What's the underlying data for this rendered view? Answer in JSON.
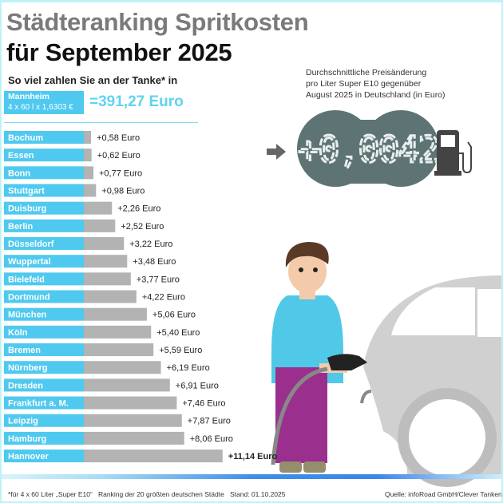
{
  "header": {
    "title_line1": "Städteranking Spritkosten",
    "title_line2": "für September 2025",
    "subtitle": "So viel zahlen Sie an der Tanke* in"
  },
  "highlight": {
    "city": "Mannheim",
    "formula": "4 x 60 l x 1,6303 €",
    "total": "=391,27 Euro"
  },
  "avg_change": {
    "description": [
      "Durchschnittliche Preisänderung",
      "pro Liter Super E10 gegenüber",
      "August 2025 in Deutschland (in Euro)"
    ],
    "value": "+0,0042",
    "icon": "fuel-pump-icon"
  },
  "colors": {
    "accent": "#4fc9ef",
    "bar_gray": "#b3b3b3",
    "display_bg": "#5e7474"
  },
  "chart_data": {
    "type": "bar",
    "orientation": "horizontal",
    "categories": [
      "Bochum",
      "Essen",
      "Bonn",
      "Stuttgart",
      "Duisburg",
      "Berlin",
      "Düsseldorf",
      "Wuppertal",
      "Bielefeld",
      "Dortmund",
      "München",
      "Köln",
      "Bremen",
      "Nürnberg",
      "Dresden",
      "Frankfurt a. M.",
      "Leipzig",
      "Hamburg",
      "Hannover"
    ],
    "values": [
      0.58,
      0.62,
      0.77,
      0.98,
      2.26,
      2.52,
      3.22,
      3.48,
      3.77,
      4.22,
      5.06,
      5.4,
      5.59,
      6.19,
      6.91,
      7.46,
      7.87,
      8.06,
      11.14
    ],
    "labels": [
      "+0,58 Euro",
      "+0,62 Euro",
      "+0,77 Euro",
      "+0,98 Euro",
      "+2,26 Euro",
      "+2,52 Euro",
      "+3,22 Euro",
      "+3,48 Euro",
      "+3,77 Euro",
      "+4,22 Euro",
      "+5,06 Euro",
      "+5,40 Euro",
      "+5,59 Euro",
      "+6,19 Euro",
      "+6,91 Euro",
      "+7,46 Euro",
      "+7,87 Euro",
      "+8,06 Euro",
      "+11,14 Euro"
    ],
    "unit": "Euro"
  },
  "footer": {
    "note": "*für 4 x 60 Liter „Super E10“",
    "ranking": "Ranking der 20 größten deutschen Städte",
    "date": "Stand: 01.10.2025",
    "source": "Quelle: infoRoad GmbH/Clever Tanken"
  }
}
